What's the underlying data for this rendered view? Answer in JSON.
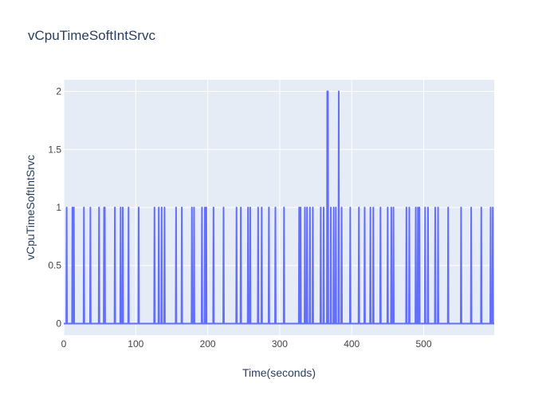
{
  "chart_data": {
    "type": "line",
    "title": "vCpuTimeSoftIntSrvc",
    "xlabel": "Time(seconds)",
    "ylabel": "vCpuTimeSoftIntSrvc",
    "xlim": [
      0,
      598
    ],
    "ylim": [
      -0.1,
      2.1
    ],
    "x_ticks": [
      0,
      100,
      200,
      300,
      400,
      500
    ],
    "y_ticks": [
      0,
      0.5,
      1,
      1.5,
      2
    ],
    "y_tick_labels": [
      "0",
      "0.5",
      "1",
      "1.5",
      "2"
    ],
    "grid": true,
    "colors": {
      "line": "#636efa",
      "plot_bg": "#e5ecf6",
      "grid": "#ffffff"
    },
    "series": [
      {
        "spikes": [
          [
            4,
            1
          ],
          [
            12,
            1
          ],
          [
            14,
            1
          ],
          [
            28,
            1
          ],
          [
            37,
            1
          ],
          [
            49,
            1
          ],
          [
            56,
            1
          ],
          [
            57,
            1
          ],
          [
            71,
            1
          ],
          [
            79,
            1
          ],
          [
            82,
            1
          ],
          [
            90,
            1
          ],
          [
            104,
            1
          ],
          [
            126,
            1
          ],
          [
            132,
            1
          ],
          [
            136,
            1
          ],
          [
            140,
            1
          ],
          [
            156,
            1
          ],
          [
            164,
            1
          ],
          [
            178,
            1
          ],
          [
            181,
            1
          ],
          [
            192,
            1
          ],
          [
            196,
            1
          ],
          [
            198,
            1
          ],
          [
            208,
            1
          ],
          [
            222,
            1
          ],
          [
            240,
            1
          ],
          [
            246,
            1
          ],
          [
            256,
            1
          ],
          [
            259,
            1
          ],
          [
            270,
            1
          ],
          [
            275,
            1
          ],
          [
            285,
            1
          ],
          [
            294,
            1
          ],
          [
            306,
            1
          ],
          [
            327,
            1
          ],
          [
            329,
            1
          ],
          [
            335,
            1
          ],
          [
            338,
            1
          ],
          [
            342,
            1
          ],
          [
            346,
            1
          ],
          [
            357,
            1
          ],
          [
            361,
            1
          ],
          [
            366,
            2
          ],
          [
            367,
            2
          ],
          [
            371,
            1
          ],
          [
            375,
            1
          ],
          [
            378,
            1
          ],
          [
            382,
            2
          ],
          [
            386,
            1
          ],
          [
            398,
            1
          ],
          [
            410,
            1
          ],
          [
            418,
            1
          ],
          [
            426,
            1
          ],
          [
            430,
            1
          ],
          [
            440,
            1
          ],
          [
            450,
            1
          ],
          [
            455,
            1
          ],
          [
            458,
            1
          ],
          [
            476,
            1
          ],
          [
            480,
            1
          ],
          [
            489,
            1
          ],
          [
            492,
            1
          ],
          [
            494,
            1
          ],
          [
            502,
            1
          ],
          [
            506,
            1
          ],
          [
            516,
            1
          ],
          [
            520,
            1
          ],
          [
            534,
            1
          ],
          [
            552,
            1
          ],
          [
            566,
            1
          ],
          [
            580,
            1
          ],
          [
            593,
            1
          ],
          [
            596,
            1
          ]
        ]
      }
    ]
  }
}
